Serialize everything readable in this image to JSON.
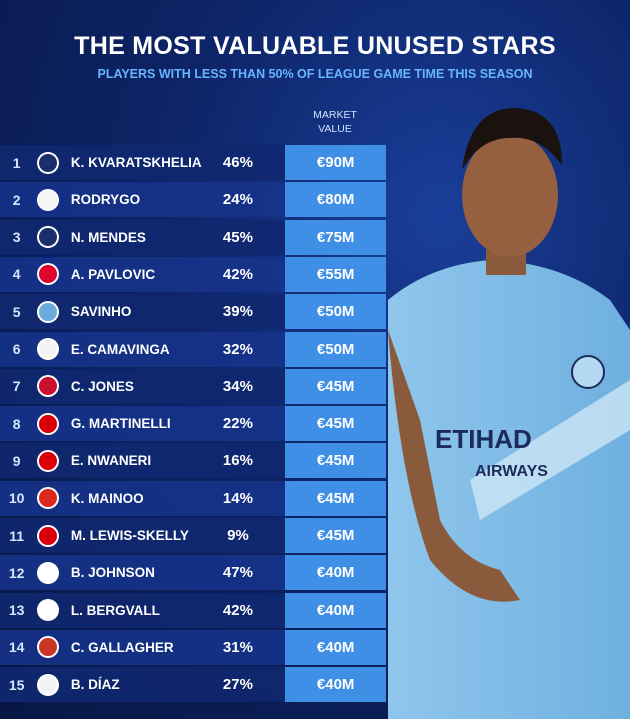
{
  "header": {
    "title": "THE MOST VALUABLE UNUSED STARS",
    "subtitle": "PLAYERS WITH LESS THAN 50% OF LEAGUE GAME TIME THIS SEASON"
  },
  "table": {
    "columns": {
      "value": "MARKET VALUE"
    },
    "rows": [
      [
        "1",
        "K. KVARATSKHELIA",
        "46%",
        "€90M"
      ],
      [
        "2",
        "RODRYGO",
        "24%",
        "€80M"
      ],
      [
        "3",
        "N. MENDES",
        "45%",
        "€75M"
      ],
      [
        "4",
        "A. PAVLOVIC",
        "42%",
        "€55M"
      ],
      [
        "5",
        "SAVINHO",
        "39%",
        "€50M"
      ],
      [
        "6",
        "E. CAMAVINGA",
        "32%",
        "€50M"
      ],
      [
        "7",
        "C. JONES",
        "34%",
        "€45M"
      ],
      [
        "8",
        "G. MARTINELLI",
        "22%",
        "€45M"
      ],
      [
        "9",
        "E. NWANERI",
        "16%",
        "€45M"
      ],
      [
        "10",
        "K. MAINOO",
        "14%",
        "€45M"
      ],
      [
        "11",
        "M. LEWIS-SKELLY",
        "9%",
        "€45M"
      ],
      [
        "12",
        "B. JOHNSON",
        "47%",
        "€40M"
      ],
      [
        "13",
        "L. BERGVALL",
        "42%",
        "€40M"
      ],
      [
        "14",
        "C. GALLAGHER",
        "31%",
        "€40M"
      ],
      [
        "15",
        "B. DÍAZ",
        "27%",
        "€40M"
      ]
    ]
  }
}
